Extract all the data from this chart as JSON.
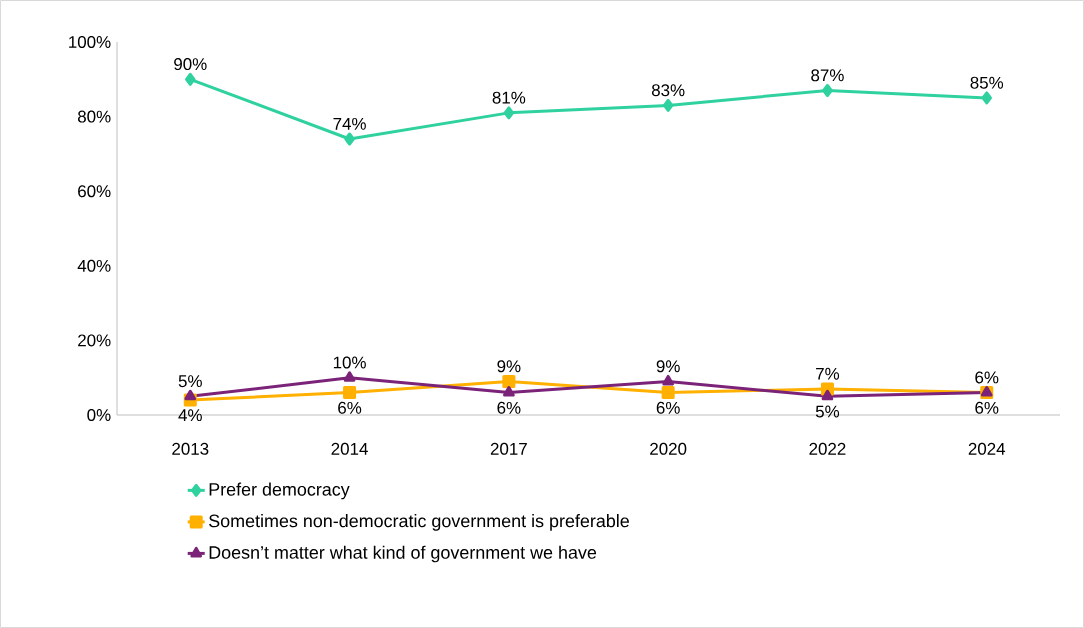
{
  "chart_data": {
    "type": "line",
    "categories": [
      "2013",
      "2014",
      "2017",
      "2020",
      "2022",
      "2024"
    ],
    "ylim": [
      0,
      100
    ],
    "yticks": [
      {
        "value": 0,
        "label": "0%"
      },
      {
        "value": 20,
        "label": "20%"
      },
      {
        "value": 40,
        "label": "40%"
      },
      {
        "value": 60,
        "label": "60%"
      },
      {
        "value": 80,
        "label": "80%"
      },
      {
        "value": 100,
        "label": "100%"
      }
    ],
    "grid": false,
    "legend": "bottom",
    "line_style": "solid",
    "series": [
      {
        "name": "Prefer democracy",
        "color": "#2fd19f",
        "marker": "diamond",
        "values": [
          90,
          74,
          81,
          83,
          87,
          85
        ],
        "value_labels": [
          "90%",
          "74%",
          "81%",
          "83%",
          "87%",
          "85%"
        ]
      },
      {
        "name": "Sometimes non-democratic government is preferable",
        "color": "#ffb000",
        "marker": "square",
        "values": [
          4,
          6,
          9,
          6,
          7,
          6
        ],
        "value_labels": [
          "4%",
          "6%",
          "9%",
          "6%",
          "7%",
          "6%"
        ]
      },
      {
        "name": "Doesn’t matter what kind of government we have",
        "color": "#7b2378",
        "marker": "triangle",
        "values": [
          5,
          10,
          6,
          9,
          5,
          6
        ],
        "value_labels": [
          "5%",
          "10%",
          "6%",
          "9%",
          "5%",
          "6%"
        ]
      }
    ]
  }
}
